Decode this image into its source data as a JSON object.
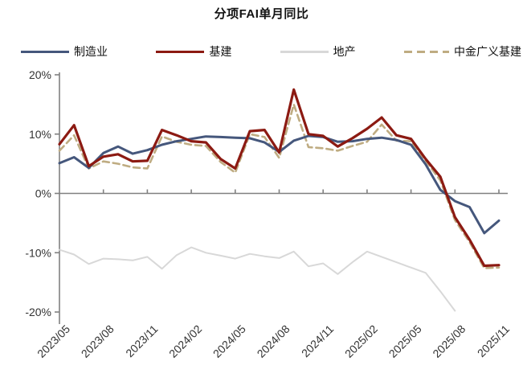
{
  "chart_data": {
    "type": "line",
    "title": "分项FAI单月同比",
    "unit": "%",
    "grid": false,
    "legend_position": "top",
    "ylim": [
      -20,
      20
    ],
    "yticks": [
      20,
      10,
      0,
      -10,
      -20
    ],
    "ytick_labels": [
      "20%",
      "10%",
      "0%",
      "-10%",
      "-20%"
    ],
    "xtick_labels": [
      "2023/05",
      "2023/08",
      "2023/11",
      "2024/02",
      "2024/05",
      "2024/08",
      "2024/11",
      "2025/02",
      "2025/05",
      "2025/08",
      "2025/11"
    ],
    "x": [
      "2023/05",
      "2023/06",
      "2023/07",
      "2023/08",
      "2023/09",
      "2023/10",
      "2023/11",
      "2023/12",
      "2024/01",
      "2024/02",
      "2024/03",
      "2024/04",
      "2024/05",
      "2024/06",
      "2024/07",
      "2024/08",
      "2024/09",
      "2024/10",
      "2024/11",
      "2024/12",
      "2025/01",
      "2025/02",
      "2025/03",
      "2025/04",
      "2025/05",
      "2025/06",
      "2025/07",
      "2025/08",
      "2025/09",
      "2025/10",
      "2025/11"
    ],
    "axis_color": "#808080",
    "tick_label_color": "#333333",
    "series": [
      {
        "id": "manufacturing",
        "name": "制造业",
        "color": "#45577C",
        "style": "solid",
        "width": 3,
        "values": [
          5.1,
          6.1,
          4.3,
          6.8,
          7.9,
          6.7,
          7.3,
          8.2,
          8.8,
          9.2,
          9.6,
          9.5,
          9.4,
          9.3,
          8.6,
          7.0,
          8.9,
          9.7,
          9.5,
          8.7,
          8.8,
          9.2,
          9.4,
          9.0,
          8.2,
          4.9,
          0.6,
          -1.3,
          -2.3,
          -6.7,
          -4.6
        ]
      },
      {
        "id": "infrastructure",
        "name": "基建",
        "color": "#8C1A12",
        "style": "solid",
        "width": 3.2,
        "values": [
          8.3,
          11.5,
          4.6,
          6.2,
          6.6,
          5.4,
          5.5,
          10.7,
          9.8,
          8.8,
          8.6,
          5.8,
          4.2,
          10.5,
          10.7,
          6.9,
          17.5,
          10.0,
          9.7,
          7.9,
          9.3,
          10.9,
          12.8,
          9.8,
          9.2,
          5.8,
          2.8,
          -4.0,
          -7.8,
          -12.2,
          -12.1
        ]
      },
      {
        "id": "property",
        "name": "地产",
        "color": "#D8D8D8",
        "style": "solid",
        "width": 2,
        "values": [
          -9.5,
          -10.3,
          -11.9,
          -11.0,
          -11.1,
          -11.3,
          -10.7,
          -12.7,
          -10.4,
          -9.1,
          -10.0,
          -10.5,
          -11.0,
          -10.2,
          -10.6,
          -10.9,
          -9.8,
          -12.3,
          -11.8,
          -13.6,
          -11.6,
          -9.8,
          -10.7,
          -11.6,
          -12.5,
          -13.4,
          -16.5,
          -19.8,
          null,
          null,
          null
        ]
      },
      {
        "id": "cicc-broad-infrastructure",
        "name": "中金广义基建",
        "color": "#BFAC82",
        "style": "dashed",
        "width": 2.6,
        "values": [
          7.2,
          9.8,
          4.2,
          5.4,
          5.0,
          4.4,
          4.2,
          9.6,
          8.7,
          8.2,
          8.0,
          5.3,
          3.5,
          10.0,
          9.5,
          6.0,
          15.0,
          7.8,
          7.6,
          7.2,
          8.0,
          8.7,
          11.6,
          8.9,
          8.8,
          5.5,
          2.2,
          -4.5,
          -8.2,
          -12.6,
          -12.5
        ]
      }
    ]
  }
}
